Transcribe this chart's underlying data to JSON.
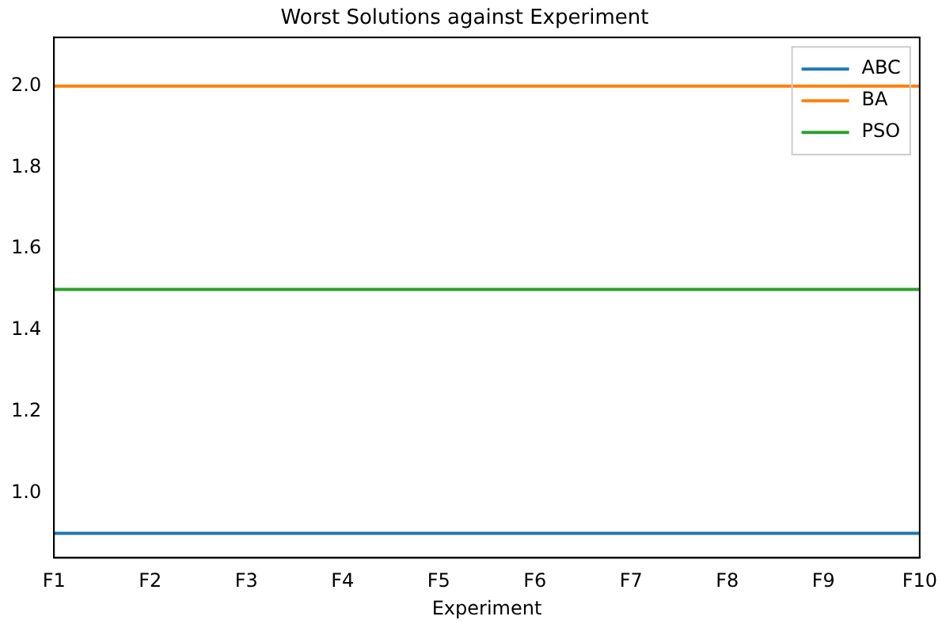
{
  "chart_data": {
    "type": "line",
    "title": "Worst Solutions against Experiment",
    "xlabel": "Experiment",
    "categories": [
      "F1",
      "F2",
      "F3",
      "F4",
      "F5",
      "F6",
      "F7",
      "F8",
      "F9",
      "F10"
    ],
    "series": [
      {
        "name": "ABC",
        "color": "#1f77b4",
        "values": [
          0.9,
          0.9,
          0.9,
          0.9,
          0.9,
          0.9,
          0.9,
          0.9,
          0.9,
          0.9
        ]
      },
      {
        "name": "BA",
        "color": "#ff7f0e",
        "values": [
          2.0,
          2.0,
          2.0,
          2.0,
          2.0,
          2.0,
          2.0,
          2.0,
          2.0,
          2.0
        ]
      },
      {
        "name": "PSO",
        "color": "#2ca02c",
        "values": [
          1.5,
          1.5,
          1.5,
          1.5,
          1.5,
          1.5,
          1.5,
          1.5,
          1.5,
          1.5
        ]
      }
    ],
    "ylim": [
      0.84,
      2.12
    ],
    "yticks": [
      {
        "value": 1.0,
        "label": "1.0"
      },
      {
        "value": 1.2,
        "label": "1.2"
      },
      {
        "value": 1.4,
        "label": "1.4"
      },
      {
        "value": 1.6,
        "label": "1.6"
      },
      {
        "value": 1.8,
        "label": "1.8"
      },
      {
        "value": 2.0,
        "label": "2.0"
      }
    ],
    "legend": "top right",
    "marker": "none",
    "line_style": "solid"
  }
}
